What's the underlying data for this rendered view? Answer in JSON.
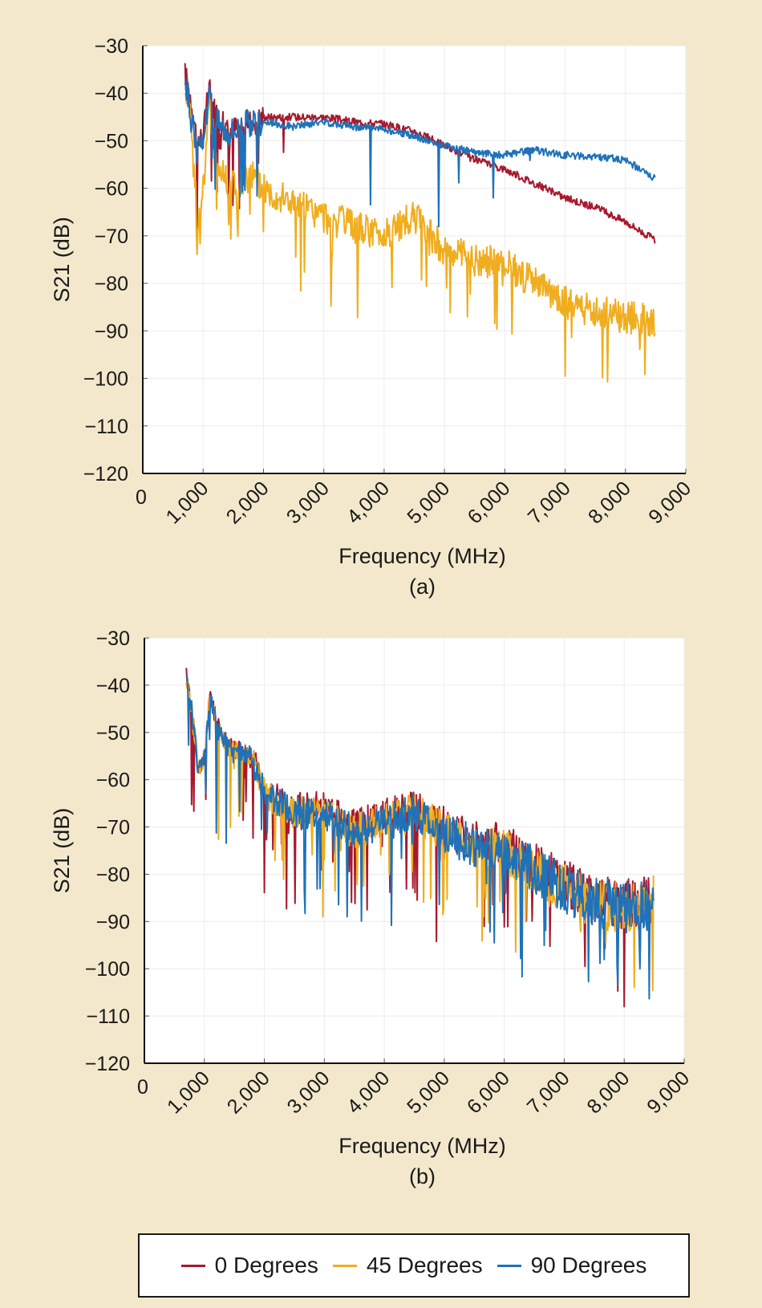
{
  "chart_data": [
    {
      "type": "line",
      "panel_label": "(a)",
      "xlabel": "Frequency (MHz)",
      "ylabel": "S21 (dB)",
      "xlim": [
        0,
        9000
      ],
      "ylim": [
        -120,
        -30
      ],
      "xticks": [
        "0",
        "1,000",
        "2,000",
        "3,000",
        "4,000",
        "5,000",
        "6,000",
        "7,000",
        "8,000",
        "9,000"
      ],
      "yticks": [
        "−30",
        "−40",
        "−50",
        "−60",
        "−70",
        "−80",
        "−90",
        "−100",
        "−110",
        "−120"
      ],
      "grid": true,
      "series": [
        {
          "name": "0 Degrees",
          "color": "#a6192e",
          "x": [
            700,
            800,
            900,
            1000,
            1100,
            1200,
            1400,
            1600,
            1800,
            2000,
            2500,
            3000,
            3500,
            4000,
            4500,
            5000,
            5500,
            6000,
            6500,
            7000,
            7500,
            8000,
            8500
          ],
          "y": [
            -36,
            -41,
            -50,
            -49,
            -39,
            -44,
            -48,
            -47,
            -46,
            -45,
            -45,
            -45,
            -46,
            -46.5,
            -48,
            -51,
            -54,
            -56,
            -59,
            -62,
            -64,
            -67,
            -71
          ]
        },
        {
          "name": "45 Degrees",
          "color": "#f0ad1e",
          "x": [
            700,
            800,
            900,
            1000,
            1100,
            1200,
            1400,
            1600,
            1800,
            2000,
            2500,
            3000,
            3500,
            4000,
            4500,
            5000,
            5500,
            6000,
            6500,
            7000,
            7500,
            8000,
            8500
          ],
          "y": [
            -37,
            -45,
            -68,
            -60,
            -42,
            -55,
            -58,
            -60,
            -57,
            -60,
            -63,
            -66,
            -68,
            -70,
            -66,
            -73,
            -75,
            -76,
            -80,
            -84,
            -86,
            -87,
            -88
          ]
        },
        {
          "name": "90 Degrees",
          "color": "#1f72b8",
          "x": [
            700,
            800,
            900,
            1000,
            1100,
            1200,
            1400,
            1600,
            1800,
            2000,
            2500,
            3000,
            3500,
            4000,
            4500,
            5000,
            5500,
            6000,
            6500,
            7000,
            7500,
            8000,
            8500
          ],
          "y": [
            -37,
            -44,
            -52,
            -50,
            -40,
            -45,
            -48,
            -47,
            -46,
            -46,
            -47,
            -46,
            -47,
            -47.5,
            -49,
            -51,
            -52.5,
            -53,
            -52,
            -53,
            -53.5,
            -54,
            -58
          ]
        }
      ]
    },
    {
      "type": "line",
      "panel_label": "(b)",
      "xlabel": "Frequency (MHz)",
      "ylabel": "S21 (dB)",
      "xlim": [
        0,
        9000
      ],
      "ylim": [
        -120,
        -30
      ],
      "xticks": [
        "0",
        "1,000",
        "2,000",
        "3,000",
        "4,000",
        "5,000",
        "6,000",
        "7,000",
        "8,000",
        "9,000"
      ],
      "yticks": [
        "−30",
        "−40",
        "−50",
        "−60",
        "−70",
        "−80",
        "−90",
        "−100",
        "−110",
        "−120"
      ],
      "grid": true,
      "series": [
        {
          "name": "0 Degrees",
          "color": "#a6192e",
          "x": [
            700,
            800,
            900,
            1000,
            1100,
            1200,
            1400,
            1600,
            1800,
            2000,
            2500,
            3000,
            3500,
            4000,
            4500,
            5000,
            5500,
            6000,
            6500,
            7000,
            7500,
            8000,
            8500
          ],
          "y": [
            -38,
            -46,
            -58,
            -55,
            -42,
            -48,
            -53,
            -54,
            -55,
            -62,
            -66,
            -66,
            -70,
            -68,
            -66,
            -70,
            -73,
            -74,
            -78,
            -82,
            -85,
            -86,
            -86
          ]
        },
        {
          "name": "45 Degrees",
          "color": "#f0ad1e",
          "x": [
            700,
            800,
            900,
            1000,
            1100,
            1200,
            1400,
            1600,
            1800,
            2000,
            2500,
            3000,
            3500,
            4000,
            4500,
            5000,
            5500,
            6000,
            6500,
            7000,
            7500,
            8000,
            8500
          ],
          "y": [
            -38,
            -46,
            -58,
            -55,
            -42,
            -49,
            -53,
            -54,
            -55,
            -63,
            -67,
            -67,
            -71,
            -69,
            -67,
            -71,
            -74,
            -75,
            -79,
            -83,
            -86,
            -87,
            -85
          ]
        },
        {
          "name": "90 Degrees",
          "color": "#1f72b8",
          "x": [
            700,
            800,
            900,
            1000,
            1100,
            1200,
            1400,
            1600,
            1800,
            2000,
            2500,
            3000,
            3500,
            4000,
            4500,
            5000,
            5500,
            6000,
            6500,
            7000,
            7500,
            8000,
            8500
          ],
          "y": [
            -38,
            -46,
            -58,
            -55,
            -42,
            -49,
            -53,
            -54,
            -55,
            -63,
            -67,
            -67,
            -71,
            -69,
            -67,
            -71,
            -74,
            -75,
            -79,
            -83,
            -86,
            -87,
            -86
          ]
        }
      ]
    }
  ],
  "legend": {
    "placement": "bottom-center",
    "items": [
      {
        "label": "0 Degrees",
        "color": "#a6192e"
      },
      {
        "label": "45 Degrees",
        "color": "#f0ad1e"
      },
      {
        "label": "90 Degrees",
        "color": "#1f72b8"
      }
    ]
  }
}
